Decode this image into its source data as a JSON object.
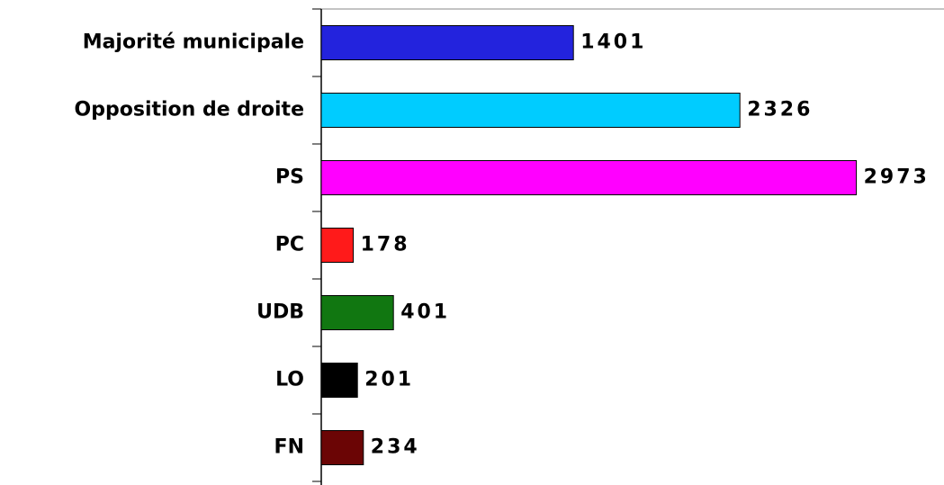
{
  "chart_data": {
    "type": "bar",
    "orientation": "horizontal",
    "categories": [
      "Majorité municipale",
      "Opposition de droite",
      "PS",
      "PC",
      "UDB",
      "LO",
      "FN"
    ],
    "values": [
      1401,
      2326,
      2973,
      178,
      401,
      201,
      234
    ],
    "colors": [
      "#2323dd",
      "#00ccff",
      "#ff00ff",
      "#ff1a1a",
      "#117711",
      "#000000",
      "#6b0505"
    ]
  }
}
